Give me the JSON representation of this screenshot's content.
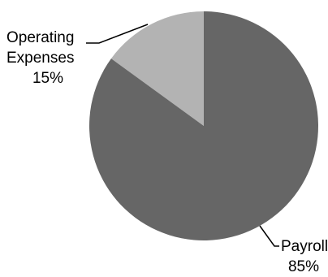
{
  "chart_data": {
    "type": "pie",
    "title": "",
    "slices": [
      {
        "label_lines": [
          "Operating",
          "Expenses"
        ],
        "percent_label": "15%",
        "value": 15,
        "color": "#b3b3b3"
      },
      {
        "label_lines": [
          "Payroll"
        ],
        "percent_label": "85%",
        "value": 85,
        "color": "#666666"
      }
    ],
    "start_angle_deg": 0,
    "direction": "counterclockwise-from-top",
    "legend": "none"
  }
}
